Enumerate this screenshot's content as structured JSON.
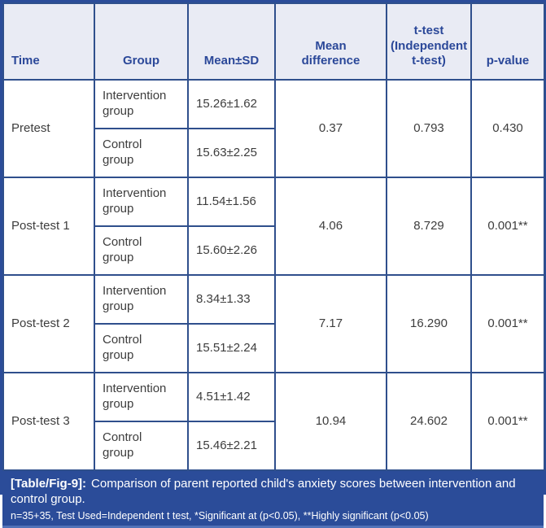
{
  "table": {
    "header": {
      "time": "Time",
      "group": "Group",
      "mean_sd": "Mean±SD",
      "mean_difference": "Mean\ndifference",
      "t_test": "t-test\n(Independent\nt-test)",
      "p_value": "p-value"
    },
    "blocks": [
      {
        "time": "Pretest",
        "groups": [
          {
            "label": "Intervention\ngroup",
            "mean_sd": "15.26±1.62"
          },
          {
            "label": "Control\ngroup",
            "mean_sd": "15.63±2.25"
          }
        ],
        "mean_difference": "0.37",
        "t_test": "0.793",
        "p_value": "0.430"
      },
      {
        "time": "Post-test 1",
        "groups": [
          {
            "label": "Intervention\ngroup",
            "mean_sd": "11.54±1.56"
          },
          {
            "label": "Control\ngroup",
            "mean_sd": "15.60±2.26"
          }
        ],
        "mean_difference": "4.06",
        "t_test": "8.729",
        "p_value": "0.001**"
      },
      {
        "time": "Post-test 2",
        "groups": [
          {
            "label": "Intervention\ngroup",
            "mean_sd": "8.34±1.33"
          },
          {
            "label": "Control\ngroup",
            "mean_sd": "15.51±2.24"
          }
        ],
        "mean_difference": "7.17",
        "t_test": "16.290",
        "p_value": "0.001**"
      },
      {
        "time": "Post-test 3",
        "groups": [
          {
            "label": "Intervention\ngroup",
            "mean_sd": "4.51±1.42"
          },
          {
            "label": "Control\ngroup",
            "mean_sd": "15.46±2.21"
          }
        ],
        "mean_difference": "10.94",
        "t_test": "24.602",
        "p_value": "0.001**"
      }
    ]
  },
  "caption": {
    "label": "[Table/Fig-9]:",
    "text": "Comparison of parent reported child's anxiety scores between intervention and control group.",
    "footnote": "n=35+35, Test Used=Independent t test, *Significant at (p<0.05), **Highly significant (p<0.05)"
  },
  "colors": {
    "outer_border_blue": "#2b4c99",
    "grid_border_blue": "#2f4f8c",
    "header_background": "#e9ebf4",
    "header_text_blue": "#2b4899",
    "body_text": "#3d3d3d",
    "caption_background": "#2b4c99",
    "caption_text": "#ffffff",
    "bottom_edge_light_blue": "#5272b8"
  }
}
